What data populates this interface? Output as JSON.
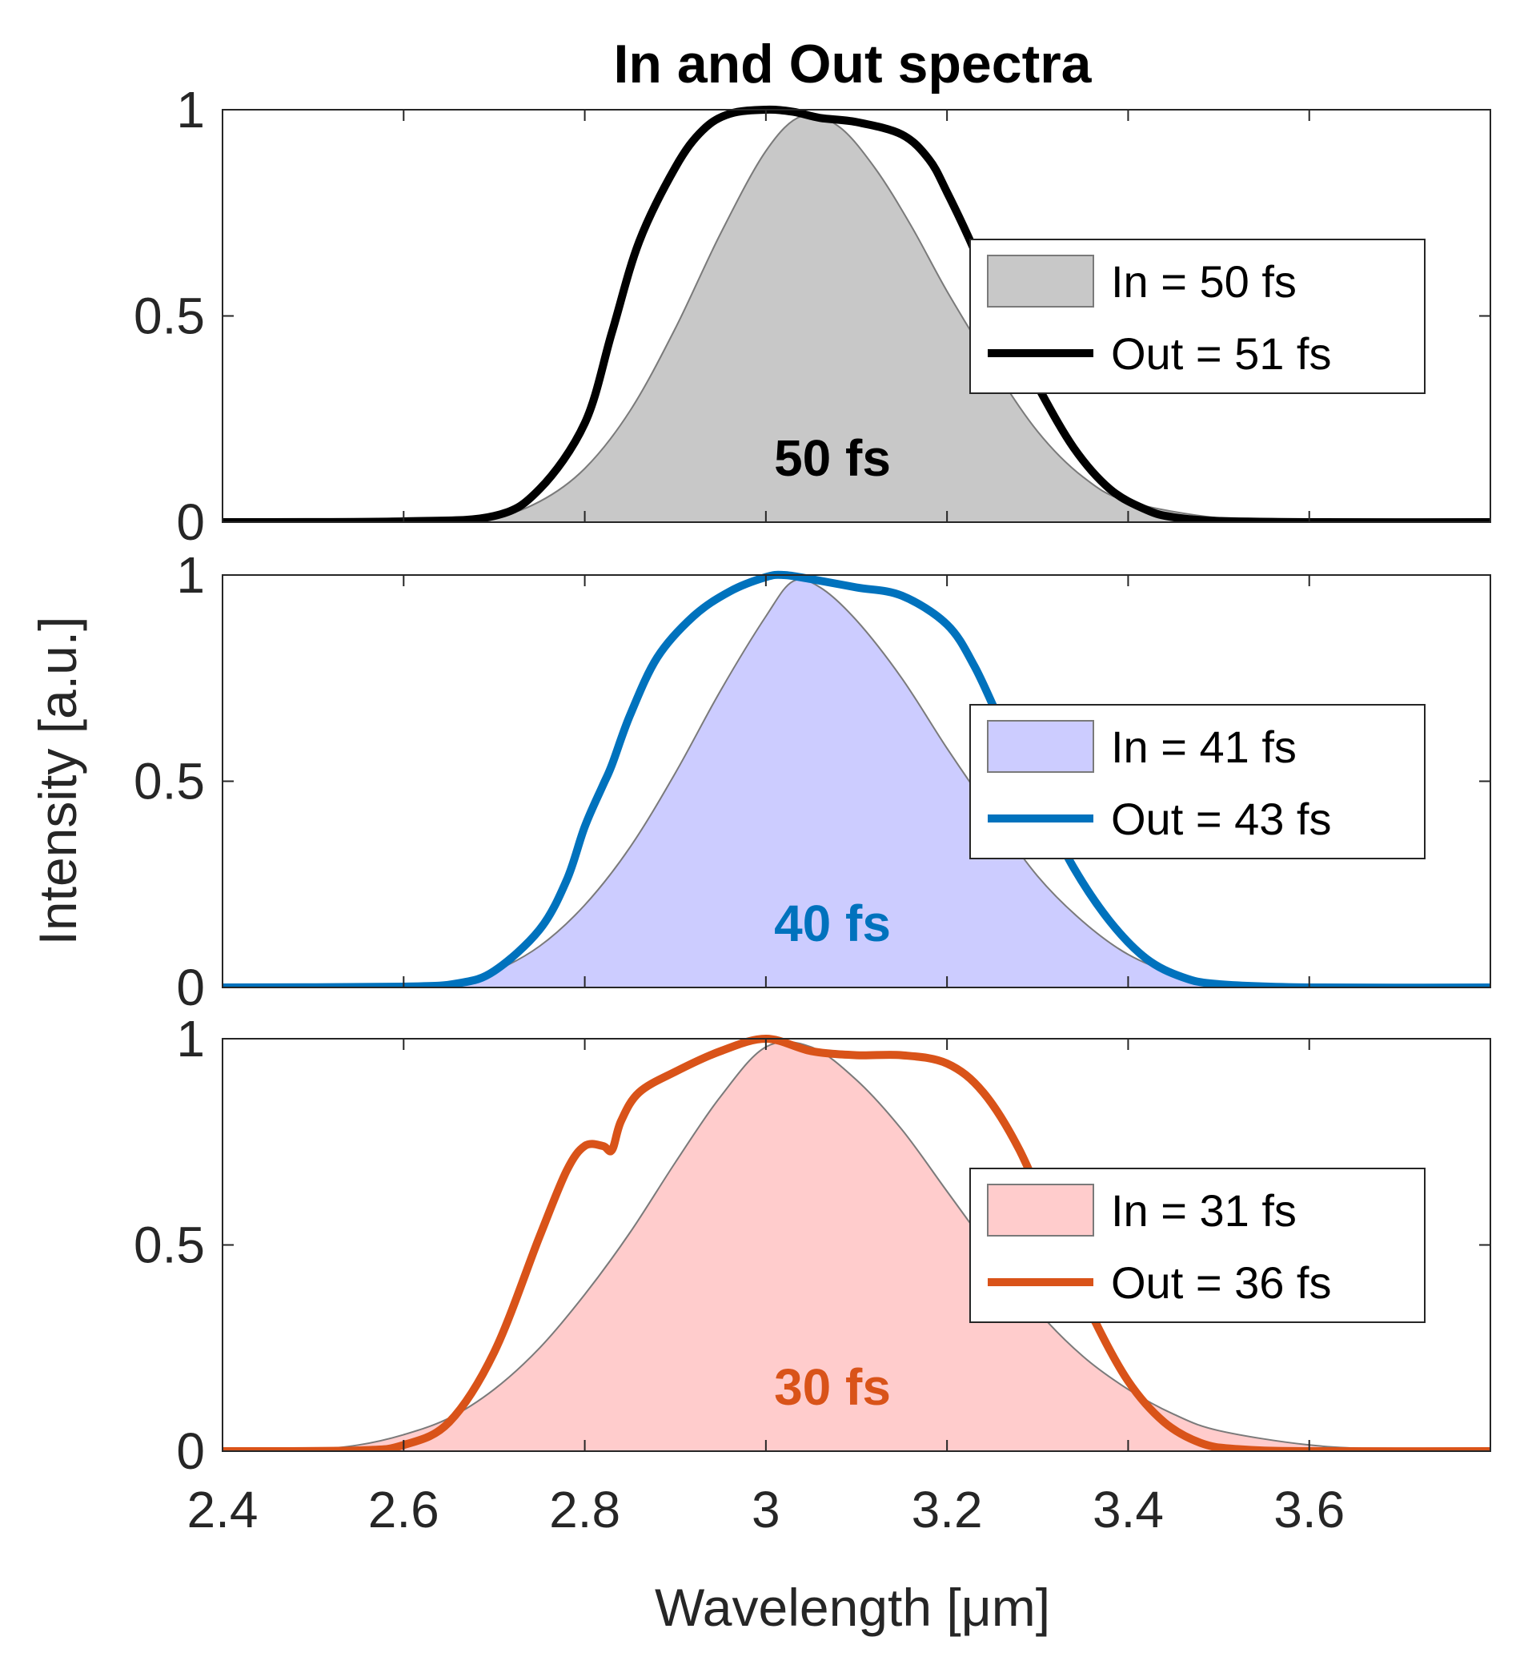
{
  "chart_data": {
    "type": "area",
    "title": "In and Out spectra",
    "xlabel": "Wavelength [μm]",
    "ylabel": "Intensity [a.u.]",
    "xlim": [
      2.4,
      3.8
    ],
    "ylim": [
      0,
      1
    ],
    "xticks": [
      2.4,
      2.6,
      2.8,
      3.0,
      3.2,
      3.4,
      3.6
    ],
    "xtick_labels": [
      "2.4",
      "2.6",
      "2.8",
      "3",
      "3.2",
      "3.4",
      "3.6"
    ],
    "yticks": [
      0,
      0.5,
      1
    ],
    "ytick_labels": [
      "0",
      "0.5",
      "1"
    ],
    "grid": false,
    "legend_position": "right",
    "panels": [
      {
        "annotation": "50 fs",
        "annotation_color": "#000000",
        "in_fill_color": "#c8c8c8",
        "out_line_color": "#000000",
        "legend": [
          "In = 50 fs",
          "Out = 51 fs"
        ],
        "series": [
          {
            "name": "In = 50 fs",
            "kind": "area",
            "x": [
              2.4,
              2.6,
              2.7,
              2.75,
              2.8,
              2.85,
              2.9,
              2.95,
              3.0,
              3.04,
              3.08,
              3.12,
              3.16,
              3.2,
              3.25,
              3.3,
              3.35,
              3.4,
              3.5,
              3.6,
              3.8
            ],
            "y": [
              0,
              0.002,
              0.015,
              0.05,
              0.13,
              0.27,
              0.47,
              0.7,
              0.9,
              0.985,
              0.96,
              0.86,
              0.72,
              0.56,
              0.38,
              0.22,
              0.11,
              0.05,
              0.01,
              0.001,
              0
            ]
          },
          {
            "name": "Out = 51 fs",
            "kind": "line",
            "x": [
              2.4,
              2.6,
              2.7,
              2.75,
              2.8,
              2.83,
              2.86,
              2.9,
              2.93,
              2.96,
              3.0,
              3.03,
              3.06,
              3.1,
              3.15,
              3.18,
              3.2,
              3.23,
              3.26,
              3.3,
              3.34,
              3.38,
              3.42,
              3.45,
              3.5,
              3.6,
              3.8
            ],
            "y": [
              0,
              0.002,
              0.015,
              0.08,
              0.24,
              0.46,
              0.68,
              0.86,
              0.95,
              0.99,
              1.0,
              0.995,
              0.98,
              0.97,
              0.94,
              0.88,
              0.8,
              0.66,
              0.5,
              0.33,
              0.18,
              0.08,
              0.03,
              0.012,
              0.003,
              0,
              0
            ]
          }
        ]
      },
      {
        "annotation": "40 fs",
        "annotation_color": "#0072bd",
        "in_fill_color": "#ccccff",
        "out_line_color": "#0072bd",
        "legend": [
          "In = 41 fs",
          "Out = 43 fs"
        ],
        "series": [
          {
            "name": "In = 41 fs",
            "kind": "area",
            "x": [
              2.4,
              2.6,
              2.65,
              2.7,
              2.75,
              2.8,
              2.85,
              2.9,
              2.95,
              3.0,
              3.03,
              3.06,
              3.1,
              3.15,
              3.2,
              3.25,
              3.3,
              3.35,
              3.4,
              3.45,
              3.5,
              3.6,
              3.8
            ],
            "y": [
              0,
              0.002,
              0.01,
              0.04,
              0.1,
              0.2,
              0.34,
              0.52,
              0.72,
              0.9,
              0.985,
              0.97,
              0.89,
              0.75,
              0.58,
              0.42,
              0.27,
              0.16,
              0.08,
              0.035,
              0.012,
              0.002,
              0
            ]
          },
          {
            "name": "Out = 43 fs",
            "kind": "line",
            "x": [
              2.4,
              2.6,
              2.66,
              2.7,
              2.75,
              2.78,
              2.8,
              2.82,
              2.83,
              2.85,
              2.88,
              2.92,
              2.96,
              3.0,
              3.02,
              3.05,
              3.1,
              3.15,
              3.2,
              3.23,
              3.26,
              3.3,
              3.34,
              3.38,
              3.42,
              3.46,
              3.5,
              3.6,
              3.8
            ],
            "y": [
              0,
              0.002,
              0.01,
              0.04,
              0.14,
              0.26,
              0.39,
              0.49,
              0.54,
              0.66,
              0.8,
              0.9,
              0.96,
              0.995,
              1.0,
              0.99,
              0.97,
              0.95,
              0.88,
              0.78,
              0.64,
              0.46,
              0.29,
              0.16,
              0.07,
              0.025,
              0.008,
              0,
              0
            ]
          }
        ]
      },
      {
        "annotation": "30 fs",
        "annotation_color": "#d95319",
        "in_fill_color": "#ffcccc",
        "out_line_color": "#d95319",
        "legend": [
          "In = 31 fs",
          "Out = 36 fs"
        ],
        "series": [
          {
            "name": "In = 31 fs",
            "kind": "area",
            "x": [
              2.4,
              2.5,
              2.55,
              2.6,
              2.65,
              2.7,
              2.75,
              2.8,
              2.85,
              2.9,
              2.95,
              3.0,
              3.05,
              3.1,
              3.15,
              3.2,
              3.25,
              3.3,
              3.35,
              3.4,
              3.45,
              3.5,
              3.6,
              3.7,
              3.8
            ],
            "y": [
              0,
              0.005,
              0.015,
              0.04,
              0.08,
              0.15,
              0.25,
              0.38,
              0.53,
              0.7,
              0.86,
              0.98,
              0.98,
              0.9,
              0.78,
              0.63,
              0.48,
              0.34,
              0.23,
              0.15,
              0.09,
              0.05,
              0.015,
              0.004,
              0
            ]
          },
          {
            "name": "Out = 36 fs",
            "kind": "line",
            "x": [
              2.4,
              2.55,
              2.6,
              2.65,
              2.7,
              2.75,
              2.78,
              2.8,
              2.82,
              2.83,
              2.84,
              2.86,
              2.9,
              2.95,
              3.0,
              3.05,
              3.1,
              3.15,
              3.2,
              3.24,
              3.28,
              3.32,
              3.36,
              3.4,
              3.44,
              3.48,
              3.52,
              3.6,
              3.8
            ],
            "y": [
              0,
              0.002,
              0.015,
              0.07,
              0.24,
              0.52,
              0.68,
              0.74,
              0.74,
              0.73,
              0.8,
              0.87,
              0.92,
              0.97,
              1.0,
              0.97,
              0.96,
              0.96,
              0.94,
              0.87,
              0.73,
              0.53,
              0.33,
              0.17,
              0.07,
              0.02,
              0.005,
              0,
              0
            ]
          }
        ]
      }
    ]
  }
}
